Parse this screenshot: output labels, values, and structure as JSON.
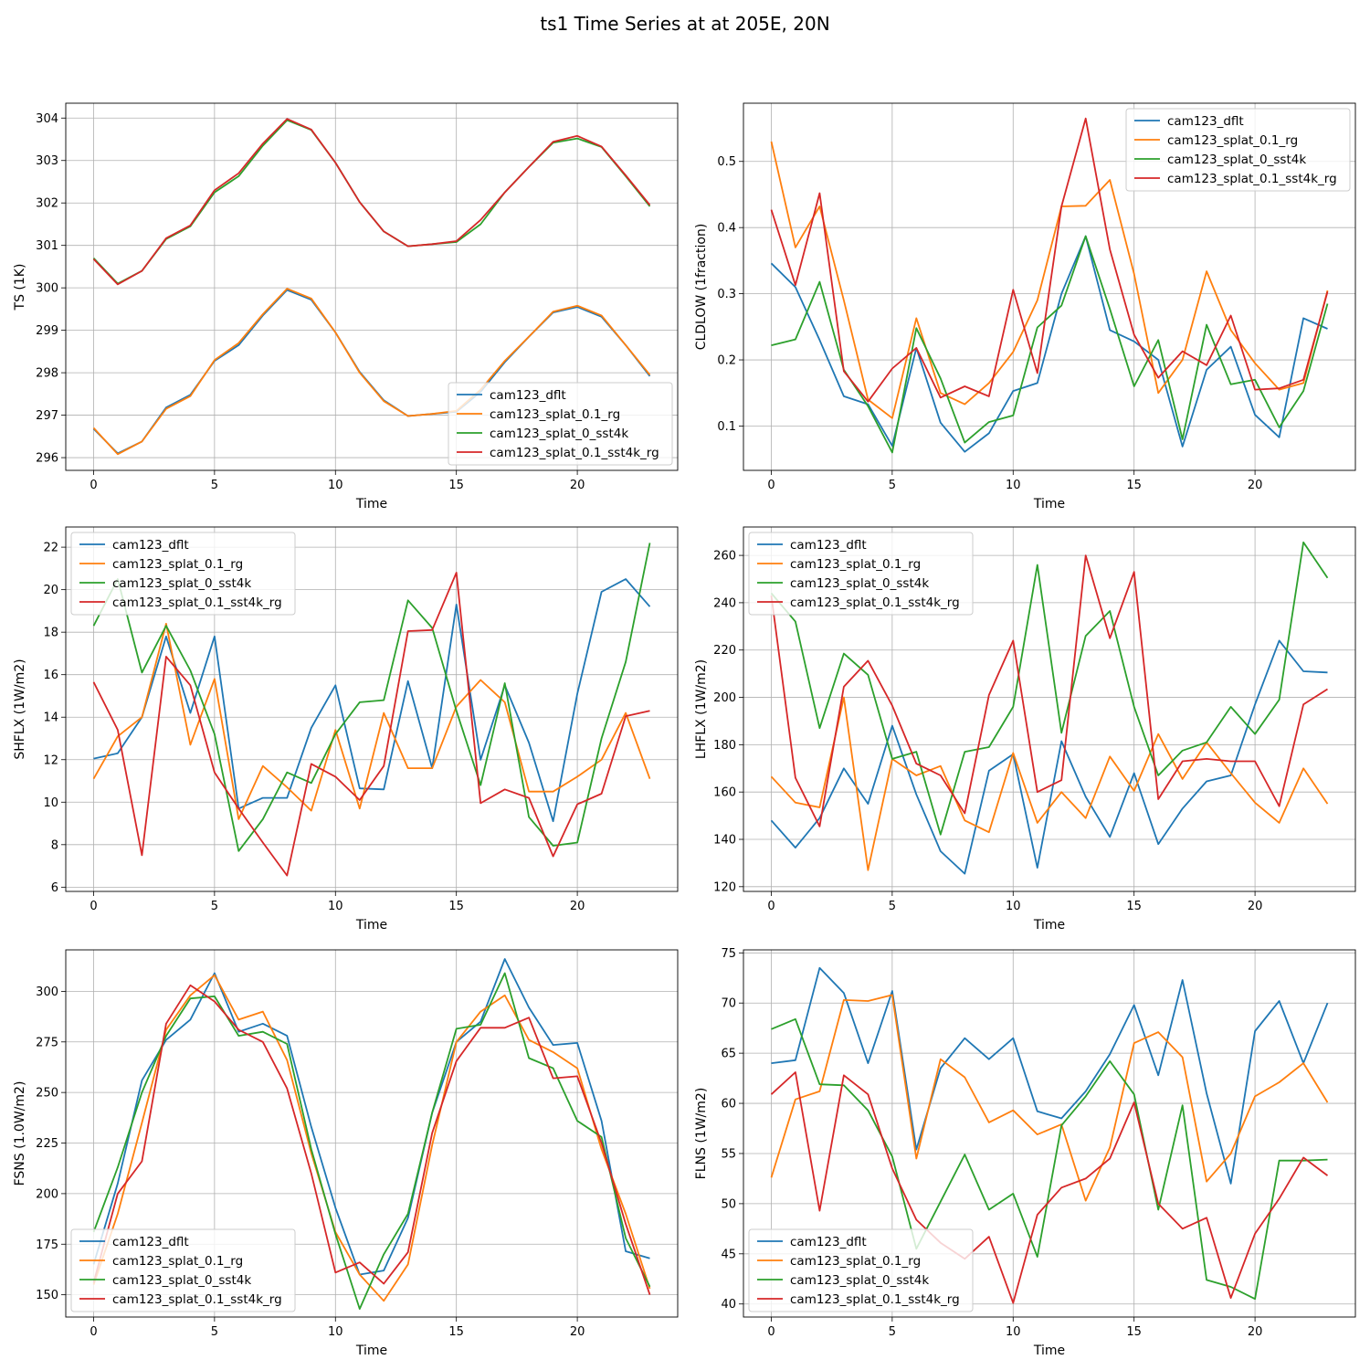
{
  "figure": {
    "title": "ts1 Time Series at at 205E, 20N"
  },
  "colors": {
    "cam123_dflt": "#1f77b4",
    "cam123_splat_0.1_rg": "#ff7f0e",
    "cam123_splat_0_sst4k": "#2ca02c",
    "cam123_splat_0.1_sst4k_rg": "#d62728",
    "grid": "#b0b0b0"
  },
  "chart_data": [
    {
      "type": "line",
      "ylabel": "TS (1K)",
      "xlabel": "Time",
      "xlim": [
        -1.15,
        24.15
      ],
      "ylim": [
        295.7,
        304.35
      ],
      "xticks": [
        0,
        5,
        10,
        15,
        20
      ],
      "yticks": [
        296,
        297,
        298,
        299,
        300,
        301,
        302,
        303,
        304
      ],
      "grid": true,
      "legend": "lower-right",
      "x": [
        0,
        1,
        2,
        3,
        4,
        5,
        6,
        7,
        8,
        9,
        10,
        11,
        12,
        13,
        14,
        15,
        16,
        17,
        18,
        19,
        20,
        21,
        22,
        23
      ],
      "series": [
        {
          "name": "cam123_dflt",
          "values": [
            296.68,
            296.1,
            296.38,
            297.18,
            297.48,
            298.28,
            298.65,
            299.35,
            299.95,
            299.72,
            298.95,
            298.02,
            297.35,
            296.98,
            297.03,
            297.08,
            297.55,
            298.25,
            298.85,
            299.42,
            299.55,
            299.32,
            298.65,
            297.92
          ]
        },
        {
          "name": "cam123_splat_0.1_rg",
          "values": [
            296.7,
            296.08,
            296.38,
            297.15,
            297.45,
            298.3,
            298.7,
            299.38,
            299.98,
            299.75,
            298.95,
            298.0,
            297.33,
            296.98,
            297.03,
            297.1,
            297.6,
            298.28,
            298.85,
            299.44,
            299.58,
            299.35,
            298.65,
            297.95
          ]
        },
        {
          "name": "cam123_splat_0_sst4k",
          "values": [
            300.7,
            300.1,
            300.4,
            301.15,
            301.45,
            302.25,
            302.63,
            303.35,
            303.95,
            303.72,
            302.95,
            302.02,
            301.33,
            300.98,
            301.03,
            301.08,
            301.5,
            302.25,
            302.85,
            303.42,
            303.52,
            303.32,
            302.63,
            301.92
          ]
        },
        {
          "name": "cam123_splat_0.1_sst4k_rg",
          "values": [
            300.68,
            300.08,
            300.4,
            301.17,
            301.47,
            302.3,
            302.7,
            303.4,
            303.98,
            303.73,
            302.95,
            302.02,
            301.33,
            300.98,
            301.03,
            301.1,
            301.6,
            302.25,
            302.85,
            303.44,
            303.58,
            303.33,
            302.65,
            301.95
          ]
        }
      ]
    },
    {
      "type": "line",
      "ylabel": "CLDLOW (1fraction)",
      "xlabel": "Time",
      "xlim": [
        -1.15,
        24.15
      ],
      "ylim": [
        0.033,
        0.588
      ],
      "xticks": [
        0,
        5,
        10,
        15,
        20
      ],
      "yticks": [
        0.1,
        0.2,
        0.3,
        0.4,
        0.5
      ],
      "grid": true,
      "legend": "top-right",
      "x": [
        0,
        1,
        2,
        3,
        4,
        5,
        6,
        7,
        8,
        9,
        10,
        11,
        12,
        13,
        14,
        15,
        16,
        17,
        18,
        19,
        20,
        21,
        22,
        23
      ],
      "series": [
        {
          "name": "cam123_dflt",
          "values": [
            0.346,
            0.31,
            0.23,
            0.145,
            0.133,
            0.07,
            0.218,
            0.105,
            0.061,
            0.089,
            0.153,
            0.165,
            0.3,
            0.387,
            0.245,
            0.228,
            0.2,
            0.069,
            0.185,
            0.22,
            0.117,
            0.083,
            0.263,
            0.247
          ]
        },
        {
          "name": "cam123_splat_0.1_rg",
          "values": [
            0.53,
            0.37,
            0.432,
            0.29,
            0.14,
            0.112,
            0.263,
            0.15,
            0.133,
            0.165,
            0.212,
            0.29,
            0.432,
            0.433,
            0.472,
            0.33,
            0.15,
            0.2,
            0.334,
            0.245,
            0.195,
            0.155,
            0.165,
            0.305
          ]
        },
        {
          "name": "cam123_splat_0_sst4k",
          "values": [
            0.222,
            0.231,
            0.318,
            0.185,
            0.13,
            0.06,
            0.248,
            0.172,
            0.075,
            0.106,
            0.116,
            0.249,
            0.282,
            0.387,
            0.277,
            0.16,
            0.23,
            0.08,
            0.253,
            0.163,
            0.17,
            0.098,
            0.153,
            0.285
          ]
        },
        {
          "name": "cam123_splat_0.1_sst4k_rg",
          "values": [
            0.427,
            0.313,
            0.452,
            0.183,
            0.137,
            0.187,
            0.218,
            0.143,
            0.16,
            0.145,
            0.306,
            0.18,
            0.432,
            0.565,
            0.367,
            0.238,
            0.173,
            0.213,
            0.192,
            0.267,
            0.155,
            0.157,
            0.17,
            0.303
          ]
        }
      ]
    },
    {
      "type": "line",
      "ylabel": "SHFLX (1W/m2)",
      "xlabel": "Time",
      "xlim": [
        -1.15,
        24.15
      ],
      "ylim": [
        5.8,
        22.95
      ],
      "xticks": [
        0,
        5,
        10,
        15,
        20
      ],
      "yticks": [
        6,
        8,
        10,
        12,
        14,
        16,
        18,
        20,
        22
      ],
      "grid": true,
      "legend": "top-left",
      "x": [
        0,
        1,
        2,
        3,
        4,
        5,
        6,
        7,
        8,
        9,
        10,
        11,
        12,
        13,
        14,
        15,
        16,
        17,
        18,
        19,
        20,
        21,
        22,
        23
      ],
      "series": [
        {
          "name": "cam123_dflt",
          "values": [
            12.05,
            12.3,
            14.0,
            17.8,
            14.2,
            17.8,
            9.7,
            10.2,
            10.2,
            13.5,
            15.5,
            10.65,
            10.6,
            15.7,
            11.6,
            19.3,
            12.0,
            15.5,
            12.8,
            9.1,
            15.1,
            19.9,
            20.5,
            19.2
          ]
        },
        {
          "name": "cam123_splat_0.1_rg",
          "values": [
            11.1,
            13.1,
            14.0,
            18.4,
            12.7,
            15.8,
            9.2,
            11.7,
            10.7,
            9.6,
            13.4,
            9.7,
            14.2,
            11.6,
            11.6,
            14.5,
            15.75,
            14.7,
            10.5,
            10.5,
            11.2,
            12.0,
            14.2,
            11.1
          ]
        },
        {
          "name": "cam123_splat_0_sst4k",
          "values": [
            18.3,
            20.5,
            16.1,
            18.3,
            16.2,
            13.2,
            7.7,
            9.2,
            11.4,
            10.9,
            13.2,
            14.7,
            14.8,
            19.5,
            18.2,
            14.3,
            10.8,
            15.6,
            9.3,
            7.95,
            8.1,
            13.0,
            16.6,
            22.2
          ]
        },
        {
          "name": "cam123_splat_0.1_sst4k_rg",
          "values": [
            15.65,
            13.4,
            7.5,
            16.85,
            15.5,
            11.4,
            9.7,
            8.1,
            6.55,
            11.8,
            11.2,
            10.1,
            11.7,
            18.05,
            18.1,
            20.8,
            9.95,
            10.6,
            10.2,
            7.45,
            9.9,
            10.4,
            14.05,
            14.3
          ]
        }
      ]
    },
    {
      "type": "line",
      "ylabel": "LHFLX (1W/m2)",
      "xlabel": "Time",
      "xlim": [
        -1.15,
        24.15
      ],
      "ylim": [
        118.0,
        272.0
      ],
      "xticks": [
        0,
        5,
        10,
        15,
        20
      ],
      "yticks": [
        120,
        140,
        160,
        180,
        200,
        220,
        240,
        260
      ],
      "grid": true,
      "legend": "top-left",
      "x": [
        0,
        1,
        2,
        3,
        4,
        5,
        6,
        7,
        8,
        9,
        10,
        11,
        12,
        13,
        14,
        15,
        16,
        17,
        18,
        19,
        20,
        21,
        22,
        23
      ],
      "series": [
        {
          "name": "cam123_dflt",
          "values": [
            148,
            136.5,
            149,
            170,
            155,
            188,
            159,
            135,
            125.5,
            169,
            176,
            128,
            181.5,
            158,
            141,
            168,
            138,
            153,
            164.5,
            167,
            197,
            224,
            211,
            210.5
          ]
        },
        {
          "name": "cam123_splat_0.1_rg",
          "values": [
            166.5,
            155.5,
            153.5,
            200,
            127,
            174,
            167,
            171,
            148,
            143,
            176.5,
            147,
            160,
            149,
            175,
            160.5,
            184.5,
            165.5,
            181,
            168,
            155.5,
            147,
            170,
            155
          ]
        },
        {
          "name": "cam123_splat_0_sst4k",
          "values": [
            244,
            232,
            187,
            218.5,
            209.5,
            174,
            177,
            142,
            177,
            179,
            196,
            256,
            185,
            226,
            236.5,
            196,
            167,
            177.5,
            181,
            196,
            184.5,
            199,
            265.5,
            250.5
          ]
        },
        {
          "name": "cam123_splat_0.1_sst4k_rg",
          "values": [
            243,
            166,
            145.5,
            204.5,
            215.5,
            196.5,
            172,
            167,
            151,
            201,
            224,
            160,
            165,
            260,
            225,
            253,
            157,
            173,
            174,
            173,
            173,
            154,
            197,
            203.5
          ]
        }
      ]
    },
    {
      "type": "line",
      "ylabel": "FSNS (1.0W/m2)",
      "xlabel": "Time",
      "xlim": [
        -1.15,
        24.15
      ],
      "ylim": [
        139.0,
        320.5
      ],
      "xticks": [
        0,
        5,
        10,
        15,
        20
      ],
      "yticks": [
        150,
        175,
        200,
        225,
        250,
        275,
        300
      ],
      "grid": true,
      "legend": "lower-left",
      "x": [
        0,
        1,
        2,
        3,
        4,
        5,
        6,
        7,
        8,
        9,
        10,
        11,
        12,
        13,
        14,
        15,
        16,
        17,
        18,
        19,
        20,
        21,
        22,
        23
      ],
      "series": [
        {
          "name": "cam123_dflt",
          "values": [
            165,
            205,
            256,
            276,
            286,
            309,
            280,
            284,
            278,
            233,
            193,
            160,
            162,
            188,
            240,
            275,
            285,
            316,
            292,
            273.5,
            274.5,
            236,
            171.5,
            168
          ]
        },
        {
          "name": "cam123_splat_0.1_rg",
          "values": [
            155,
            190,
            235,
            281,
            298,
            308,
            286,
            290,
            266,
            220,
            181,
            160,
            147,
            165,
            224,
            275,
            290,
            298,
            276,
            270,
            262,
            222,
            190,
            153
          ]
        },
        {
          "name": "cam123_splat_0_sst4k",
          "values": [
            181,
            213,
            250,
            278,
            296.5,
            297.5,
            278,
            280,
            274,
            222,
            180,
            143,
            170,
            190,
            240,
            281.5,
            283.5,
            309,
            267,
            262,
            236,
            228,
            178,
            154
          ]
        },
        {
          "name": "cam123_splat_0.1_sst4k_rg",
          "values": [
            156,
            200,
            216,
            284,
            303,
            295,
            281,
            275,
            252,
            210,
            161,
            166,
            155.5,
            171,
            230,
            265.5,
            282,
            282,
            287,
            257,
            258,
            225,
            185,
            150
          ]
        }
      ]
    },
    {
      "type": "line",
      "ylabel": "FLNS (1W/m2)",
      "xlabel": "Time",
      "xlim": [
        -1.15,
        24.15
      ],
      "ylim": [
        38.7,
        75.3
      ],
      "xticks": [
        0,
        5,
        10,
        15,
        20
      ],
      "yticks": [
        40,
        45,
        50,
        55,
        60,
        65,
        70,
        75
      ],
      "grid": true,
      "legend": "lower-left",
      "x": [
        0,
        1,
        2,
        3,
        4,
        5,
        6,
        7,
        8,
        9,
        10,
        11,
        12,
        13,
        14,
        15,
        16,
        17,
        18,
        19,
        20,
        21,
        22,
        23
      ],
      "series": [
        {
          "name": "cam123_dflt",
          "values": [
            64,
            64.3,
            73.5,
            71,
            64,
            71.2,
            55.4,
            63.5,
            66.5,
            64.4,
            66.5,
            59.2,
            58.5,
            61.2,
            64.9,
            69.8,
            62.8,
            72.3,
            61,
            52,
            67.2,
            70.2,
            64,
            70
          ]
        },
        {
          "name": "cam123_splat_0.1_rg",
          "values": [
            52.6,
            60.4,
            61.2,
            70.3,
            70.2,
            70.8,
            54.5,
            64.4,
            62.6,
            58.1,
            59.3,
            56.9,
            57.9,
            50.3,
            55.6,
            66,
            67.1,
            64.6,
            52.2,
            55,
            60.7,
            62.1,
            64,
            60.1
          ]
        },
        {
          "name": "cam123_splat_0_sst4k",
          "values": [
            67.4,
            68.4,
            61.9,
            61.8,
            59.3,
            54.7,
            45.5,
            50.2,
            54.9,
            49.4,
            51,
            44.7,
            57.8,
            60.7,
            64.2,
            60.9,
            49.4,
            59.8,
            42.4,
            41.7,
            40.5,
            54.3,
            54.3,
            54.4
          ]
        },
        {
          "name": "cam123_splat_0.1_sst4k_rg",
          "values": [
            60.9,
            63.1,
            49.3,
            62.8,
            60.9,
            53.5,
            48.4,
            46.1,
            44.5,
            46.7,
            40.1,
            48.9,
            51.6,
            52.5,
            54.5,
            60.1,
            50,
            47.5,
            48.6,
            40.6,
            47,
            50.5,
            54.6,
            52.8
          ]
        }
      ]
    }
  ]
}
